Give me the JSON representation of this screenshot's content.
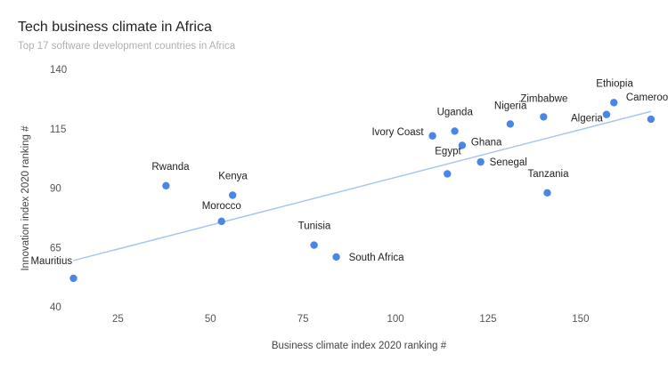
{
  "chart_data": {
    "type": "scatter",
    "title": "Tech business climate in Africa",
    "subtitle": "Top 17 software development countries in Africa",
    "xlabel": "Business climate index 2020 ranking #",
    "ylabel": "Innovation index 2020 ranking #",
    "xlim": [
      10,
      170
    ],
    "ylim": [
      40,
      140
    ],
    "xticks": [
      25,
      50,
      75,
      100,
      125,
      150
    ],
    "yticks": [
      40,
      65,
      90,
      115,
      140
    ],
    "grid": false,
    "legend": "none",
    "point_color": "#4a86e8",
    "trendline_color": "#a9c6f0",
    "trendline": {
      "x": [
        13,
        169
      ],
      "y": [
        59.5,
        122.3
      ]
    },
    "points": [
      {
        "label": "Mauritius",
        "x": 13,
        "y": 52
      },
      {
        "label": "Rwanda",
        "x": 38,
        "y": 91
      },
      {
        "label": "Morocco",
        "x": 53,
        "y": 76
      },
      {
        "label": "Kenya",
        "x": 56,
        "y": 87
      },
      {
        "label": "Tunisia",
        "x": 78,
        "y": 66
      },
      {
        "label": "South Africa",
        "x": 84,
        "y": 61
      },
      {
        "label": "Ivory Coast",
        "x": 110,
        "y": 112
      },
      {
        "label": "Egypt",
        "x": 114,
        "y": 96
      },
      {
        "label": "Uganda",
        "x": 116,
        "y": 114
      },
      {
        "label": "Ghana",
        "x": 118,
        "y": 108
      },
      {
        "label": "Senegal",
        "x": 123,
        "y": 101
      },
      {
        "label": "Nigeria",
        "x": 131,
        "y": 117
      },
      {
        "label": "Zimbabwe",
        "x": 140,
        "y": 120
      },
      {
        "label": "Tanzania",
        "x": 141,
        "y": 88
      },
      {
        "label": "Algeria",
        "x": 157,
        "y": 121
      },
      {
        "label": "Ethiopia",
        "x": 159,
        "y": 126
      },
      {
        "label": "Cameroon",
        "x": 169,
        "y": 119
      }
    ]
  }
}
